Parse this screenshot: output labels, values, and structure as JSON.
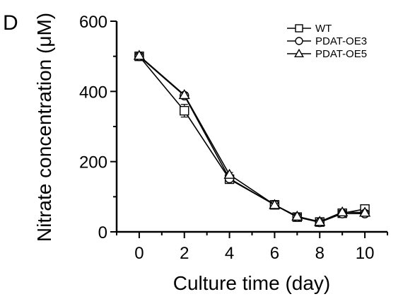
{
  "panel_label": "D",
  "chart_data": {
    "type": "line",
    "xlabel": "Culture time (day)",
    "ylabel": "Nitrate concentration (μM)",
    "xlim": [
      -1,
      11
    ],
    "ylim": [
      0,
      600
    ],
    "xticks": [
      0,
      2,
      4,
      6,
      8,
      10
    ],
    "yticks": [
      0,
      200,
      400,
      600
    ],
    "grid": false,
    "legend_position": "top-right",
    "series": [
      {
        "name": "WT",
        "marker": "square",
        "x": [
          0,
          2,
          4,
          6,
          7,
          8,
          9,
          10
        ],
        "y": [
          500,
          345,
          150,
          77,
          42,
          28,
          53,
          65
        ],
        "err": [
          5,
          18,
          8,
          5,
          5,
          4,
          6,
          6
        ]
      },
      {
        "name": "PDAT-OE3",
        "marker": "circle",
        "x": [
          0,
          2,
          4,
          6,
          7,
          8,
          9,
          10
        ],
        "y": [
          500,
          388,
          152,
          77,
          42,
          27,
          52,
          52
        ],
        "err": [
          5,
          6,
          6,
          4,
          4,
          3,
          5,
          6
        ]
      },
      {
        "name": "PDAT-OE5",
        "marker": "triangle",
        "x": [
          0,
          2,
          4,
          6,
          7,
          8,
          9,
          10
        ],
        "y": [
          502,
          390,
          163,
          77,
          44,
          29,
          56,
          55
        ],
        "err": [
          4,
          6,
          6,
          4,
          4,
          3,
          5,
          5
        ]
      }
    ]
  }
}
